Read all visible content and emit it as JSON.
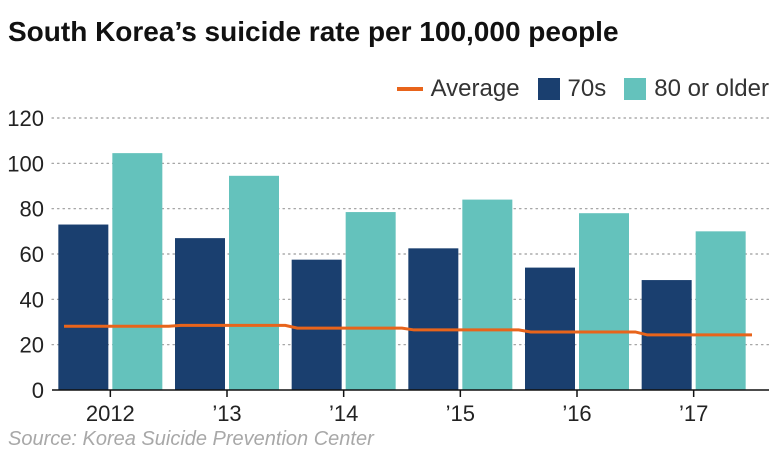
{
  "chart_data": {
    "type": "bar",
    "title": "South Korea’s suicide rate per 100,000 people",
    "categories": [
      "2012",
      "’13",
      "’14",
      "’15",
      "’16",
      "’17"
    ],
    "series": [
      {
        "name": "70s",
        "values": [
          73,
          67,
          57.5,
          62.5,
          54,
          48.5
        ],
        "color": "#1a3f6f"
      },
      {
        "name": "80 or older",
        "values": [
          104.5,
          94.5,
          78.5,
          84,
          78,
          70
        ],
        "color": "#64c2bc"
      }
    ],
    "line_series": {
      "name": "Average",
      "values": [
        28.1,
        28.5,
        27.3,
        26.5,
        25.6,
        24.3
      ],
      "color": "#e8641b",
      "style": "step"
    },
    "ylim": [
      0,
      120
    ],
    "yticks": [
      0,
      20,
      40,
      60,
      80,
      100,
      120
    ],
    "grid": true,
    "legend": "top-right",
    "source": "Source: Korea Suicide Prevention Center"
  }
}
